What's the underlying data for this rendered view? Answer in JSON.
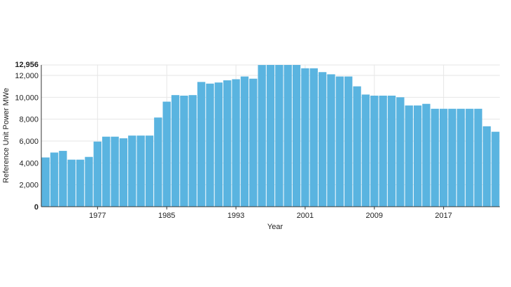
{
  "chart_data": {
    "type": "bar",
    "title": "",
    "xlabel": "Year",
    "ylabel": "Reference Unit Power MWe",
    "x": [
      1971,
      1972,
      1973,
      1974,
      1975,
      1976,
      1977,
      1978,
      1979,
      1980,
      1981,
      1982,
      1983,
      1984,
      1985,
      1986,
      1987,
      1988,
      1989,
      1990,
      1991,
      1992,
      1993,
      1994,
      1995,
      1996,
      1997,
      1998,
      1999,
      2000,
      2001,
      2002,
      2003,
      2004,
      2005,
      2006,
      2007,
      2008,
      2009,
      2010,
      2011,
      2012,
      2013,
      2014,
      2015,
      2016,
      2017,
      2018,
      2019,
      2020,
      2021,
      2022,
      2023
    ],
    "values": [
      4500,
      4950,
      5100,
      4300,
      4300,
      4550,
      5950,
      6400,
      6400,
      6250,
      6500,
      6500,
      6500,
      8150,
      9600,
      10200,
      10150,
      10200,
      11400,
      11250,
      11350,
      11550,
      11650,
      11900,
      11700,
      12950,
      12956,
      12956,
      12956,
      12956,
      12650,
      12650,
      12300,
      12100,
      11900,
      11900,
      11000,
      10250,
      10150,
      10150,
      10150,
      10000,
      9250,
      9250,
      9400,
      8950,
      8950,
      8950,
      8950,
      8950,
      8950,
      7350,
      6850
    ],
    "xticks": [
      "1977",
      "1985",
      "1993",
      "2001",
      "2009",
      "2017"
    ],
    "yticks": [
      "0",
      "2,000",
      "4,000",
      "6,000",
      "8,000",
      "10,000",
      "12,000"
    ],
    "ymax_label": "12,956",
    "ylim": [
      0,
      12956
    ],
    "grid": true,
    "bar_color": "#5ab4e0"
  }
}
